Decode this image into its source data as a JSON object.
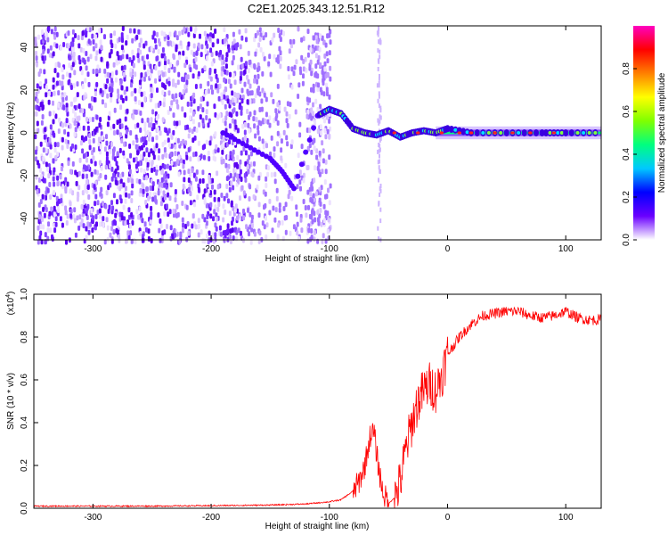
{
  "title": "C2E1.2025.343.12.51.R12",
  "chart_data": [
    {
      "type": "heatmap",
      "xlabel": "Height of straight line (km)",
      "ylabel": "Frequency (Hz)",
      "xlim": [
        -350,
        130
      ],
      "ylim": [
        -50,
        50
      ],
      "x_ticks": [
        -300,
        -200,
        -100,
        0,
        100
      ],
      "x_tick_labels": [
        "-300",
        "-200",
        "-100",
        "0",
        "100"
      ],
      "y_ticks": [
        -40,
        -20,
        0,
        20,
        40
      ],
      "y_tick_labels": [
        "-40",
        "-20",
        "0",
        "20",
        "40"
      ],
      "colorbar": {
        "label": "Normalized spectral amplitude",
        "range": [
          0,
          1
        ],
        "ticks": [
          0.0,
          0.2,
          0.4,
          0.6,
          0.8
        ],
        "tick_labels": [
          "0.0",
          "0.2",
          "0.4",
          "0.6",
          "0.8"
        ],
        "colors": [
          "#ffffff",
          "#6a00ff",
          "#0000ff",
          "#00c8ff",
          "#00ff80",
          "#80ff00",
          "#ffff00",
          "#ff8000",
          "#ff0000",
          "#ff00c0"
        ]
      },
      "features": {
        "noise_region_x": [
          -350,
          -100
        ],
        "trace": {
          "x": [
            -190,
            -170,
            -150,
            -140,
            -130,
            -110,
            -100,
            -90,
            -80,
            -70,
            -60,
            -50,
            -40,
            -30,
            -20,
            -10,
            0,
            20,
            50,
            80,
            100,
            130
          ],
          "y": [
            0,
            -6,
            -12,
            -18,
            -26,
            8,
            11,
            9,
            2,
            0,
            -1,
            1,
            -2,
            0,
            1,
            0,
            2,
            0,
            0,
            0,
            0,
            0
          ]
        }
      }
    },
    {
      "type": "line",
      "xlabel": "Height of straight line (km)",
      "ylabel": "SNR (10 * v/v)",
      "y_multiplier": "(x10",
      "y_multiplier_exp": "4",
      "y_multiplier_close": ")",
      "xlim": [
        -350,
        130
      ],
      "ylim": [
        0,
        1.0
      ],
      "x_ticks": [
        -300,
        -200,
        -100,
        0,
        100
      ],
      "x_tick_labels": [
        "-300",
        "-200",
        "-100",
        "0",
        "100"
      ],
      "y_ticks": [
        0.0,
        0.2,
        0.4,
        0.6,
        0.8,
        1.0
      ],
      "y_tick_labels": [
        "0.0",
        "0.2",
        "0.4",
        "0.6",
        "0.8",
        "1.0"
      ],
      "color": "#ff0000",
      "series": [
        {
          "name": "SNR",
          "x": [
            -350,
            -300,
            -250,
            -200,
            -150,
            -120,
            -100,
            -90,
            -80,
            -75,
            -70,
            -65,
            -62,
            -60,
            -55,
            -50,
            -45,
            -40,
            -35,
            -30,
            -25,
            -20,
            -15,
            -10,
            -5,
            0,
            10,
            20,
            30,
            40,
            50,
            60,
            70,
            80,
            90,
            100,
            110,
            120,
            130
          ],
          "y": [
            0.01,
            0.01,
            0.01,
            0.012,
            0.015,
            0.02,
            0.03,
            0.04,
            0.08,
            0.12,
            0.2,
            0.35,
            0.35,
            0.25,
            0.08,
            0.02,
            0.05,
            0.12,
            0.28,
            0.4,
            0.5,
            0.55,
            0.58,
            0.55,
            0.62,
            0.72,
            0.8,
            0.86,
            0.9,
            0.91,
            0.92,
            0.92,
            0.9,
            0.89,
            0.9,
            0.92,
            0.89,
            0.88,
            0.88
          ]
        }
      ]
    }
  ]
}
